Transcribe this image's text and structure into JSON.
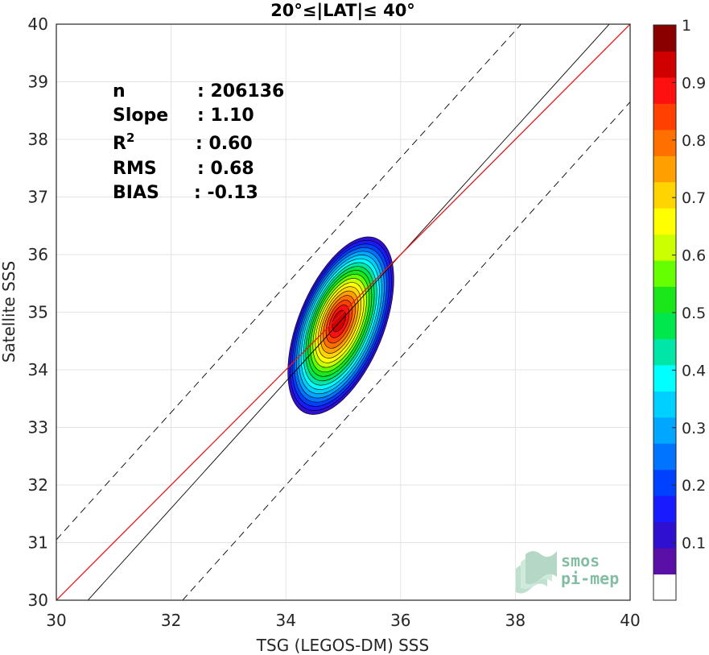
{
  "chart_data": {
    "type": "contour-density-scatter",
    "title": "20°≤|LAT|≤ 40°",
    "xlabel": "TSG (LEGOS-DM) SSS",
    "ylabel": "Satellite SSS",
    "xlim": [
      30,
      40
    ],
    "ylim": [
      30,
      40
    ],
    "xticks": [
      30,
      32,
      34,
      36,
      38,
      40
    ],
    "yticks": [
      30,
      31,
      32,
      33,
      34,
      35,
      36,
      37,
      38,
      39,
      40
    ],
    "grid": true,
    "stats": [
      {
        "label": "n",
        "sup": "",
        "value": ": 206136"
      },
      {
        "label": "Slope",
        "sup": "",
        "value": ": 1.10"
      },
      {
        "label": "R",
        "sup": "2",
        "value": ": 0.60"
      },
      {
        "label": "RMS",
        "sup": "",
        "value": ": 0.68"
      },
      {
        "label": "BIAS",
        "sup": "",
        "value": ": -0.13"
      }
    ],
    "density_peak": {
      "x": 34.93,
      "y": 34.85
    },
    "lines": {
      "one_to_one": {
        "color": "#e41a1c",
        "x": [
          30,
          40
        ],
        "y": [
          30,
          40
        ]
      },
      "regression": {
        "color": "#000000",
        "x": [
          30.55,
          40
        ],
        "y": [
          30,
          40.4
        ]
      },
      "upper_band": {
        "dash": true,
        "x": [
          30,
          38.1
        ],
        "y": [
          31.05,
          40
        ]
      },
      "lower_band": {
        "dash": true,
        "x": [
          32.2,
          40
        ],
        "y": [
          30,
          38.65
        ]
      }
    },
    "colorbar": {
      "ticks": [
        "0.1",
        "0.2",
        "0.3",
        "0.4",
        "0.5",
        "0.6",
        "0.7",
        "0.8",
        "0.9",
        "1"
      ],
      "range": [
        0,
        1
      ],
      "levels": 20,
      "colors": [
        "#ffffff",
        "#5a0fa6",
        "#2f0fd0",
        "#1a1aff",
        "#0040ff",
        "#0073ff",
        "#00a6ff",
        "#00d0ff",
        "#00ffff",
        "#00e6a8",
        "#00e64d",
        "#1ae61a",
        "#66ff00",
        "#ccff00",
        "#ffff00",
        "#ffd400",
        "#ffa000",
        "#ff7000",
        "#ff4000",
        "#ff1010",
        "#d00000",
        "#8a0000"
      ]
    }
  },
  "logo": {
    "line1": "smos",
    "line2": "pi-mep",
    "color": "#5aa886"
  }
}
